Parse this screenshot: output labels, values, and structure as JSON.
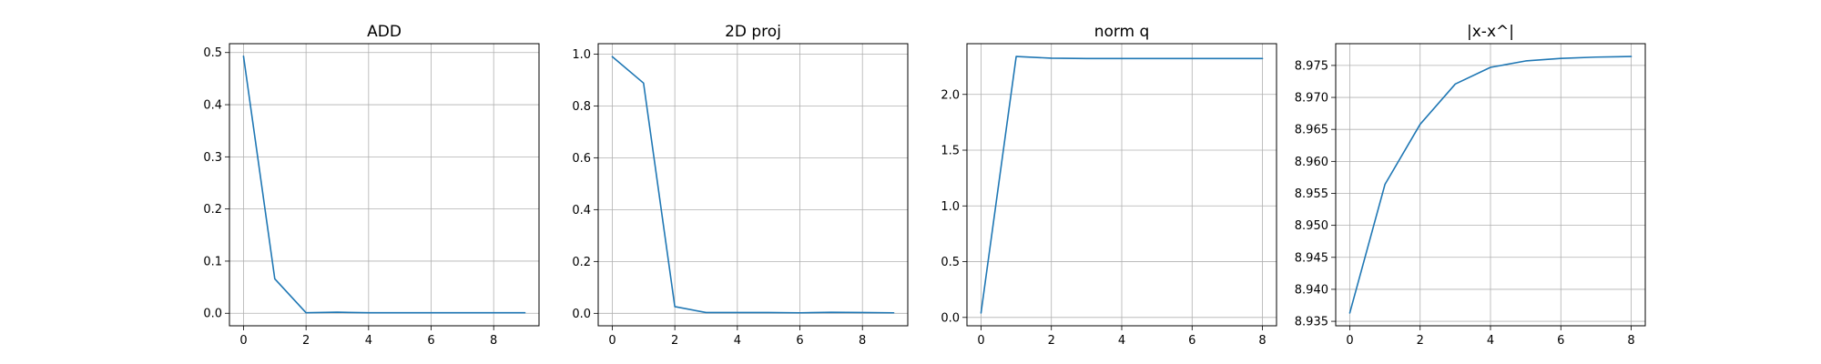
{
  "figure": {
    "line_color": "#1f77b4",
    "grid_color": "#b0b0b0"
  },
  "chart_data": [
    {
      "type": "line",
      "title": "ADD",
      "xlabel": "",
      "ylabel": "",
      "grid": true,
      "x": [
        0,
        1,
        2,
        3,
        4,
        5,
        6,
        7,
        8,
        9
      ],
      "series": [
        {
          "values": [
            0.493,
            0.066,
            0.001,
            0.002,
            0.001,
            0.001,
            0.001,
            0.001,
            0.001,
            0.001
          ]
        }
      ],
      "xticks": [
        0,
        2,
        4,
        6,
        8
      ],
      "yticks": [
        0.0,
        0.1,
        0.2,
        0.3,
        0.4,
        0.5
      ],
      "xtick_labels": [
        "0",
        "2",
        "4",
        "6",
        "8"
      ],
      "ytick_labels": [
        "0.0",
        "0.1",
        "0.2",
        "0.3",
        "0.4",
        "0.5"
      ],
      "xlim": [
        -0.45,
        9.45
      ],
      "ylim": [
        -0.024,
        0.517
      ]
    },
    {
      "type": "line",
      "title": "2D proj",
      "xlabel": "",
      "ylabel": "",
      "grid": true,
      "x": [
        0,
        1,
        2,
        3,
        4,
        5,
        6,
        7,
        8,
        9
      ],
      "series": [
        {
          "values": [
            0.99,
            0.888,
            0.026,
            0.003,
            0.003,
            0.003,
            0.002,
            0.004,
            0.003,
            0.002
          ]
        }
      ],
      "xticks": [
        0,
        2,
        4,
        6,
        8
      ],
      "yticks": [
        0.0,
        0.2,
        0.4,
        0.6,
        0.8,
        1.0
      ],
      "xtick_labels": [
        "0",
        "2",
        "4",
        "6",
        "8"
      ],
      "ytick_labels": [
        "0.0",
        "0.2",
        "0.4",
        "0.6",
        "0.8",
        "1.0"
      ],
      "xlim": [
        -0.45,
        9.45
      ],
      "ylim": [
        -0.048,
        1.04
      ]
    },
    {
      "type": "line",
      "title": "norm q",
      "xlabel": "",
      "ylabel": "",
      "grid": true,
      "x": [
        0,
        1,
        2,
        3,
        4,
        5,
        6,
        7,
        8
      ],
      "series": [
        {
          "values": [
            0.04,
            2.34,
            2.325,
            2.322,
            2.322,
            2.322,
            2.322,
            2.322,
            2.322
          ]
        }
      ],
      "xticks": [
        0,
        2,
        4,
        6,
        8
      ],
      "yticks": [
        0.0,
        0.5,
        1.0,
        1.5,
        2.0
      ],
      "xtick_labels": [
        "0",
        "2",
        "4",
        "6",
        "8"
      ],
      "ytick_labels": [
        "0.0",
        "0.5",
        "1.0",
        "1.5",
        "2.0"
      ],
      "xlim": [
        -0.4,
        8.4
      ],
      "ylim": [
        -0.075,
        2.455
      ]
    },
    {
      "type": "line",
      "title": "|x-x^|",
      "xlabel": "",
      "ylabel": "",
      "grid": true,
      "x": [
        0,
        1,
        2,
        3,
        4,
        5,
        6,
        7,
        8
      ],
      "series": [
        {
          "values": [
            8.9363,
            8.9564,
            8.9658,
            8.9721,
            8.9747,
            8.9757,
            8.9761,
            8.9763,
            8.9764
          ]
        }
      ],
      "xticks": [
        0,
        2,
        4,
        6,
        8
      ],
      "yticks": [
        8.935,
        8.94,
        8.945,
        8.95,
        8.955,
        8.96,
        8.965,
        8.97,
        8.975
      ],
      "xtick_labels": [
        "0",
        "2",
        "4",
        "6",
        "8"
      ],
      "ytick_labels": [
        "8.935",
        "8.940",
        "8.945",
        "8.950",
        "8.955",
        "8.960",
        "8.965",
        "8.970",
        "8.975"
      ],
      "xlim": [
        -0.4,
        8.4
      ],
      "ylim": [
        8.9343,
        8.9784
      ]
    }
  ]
}
